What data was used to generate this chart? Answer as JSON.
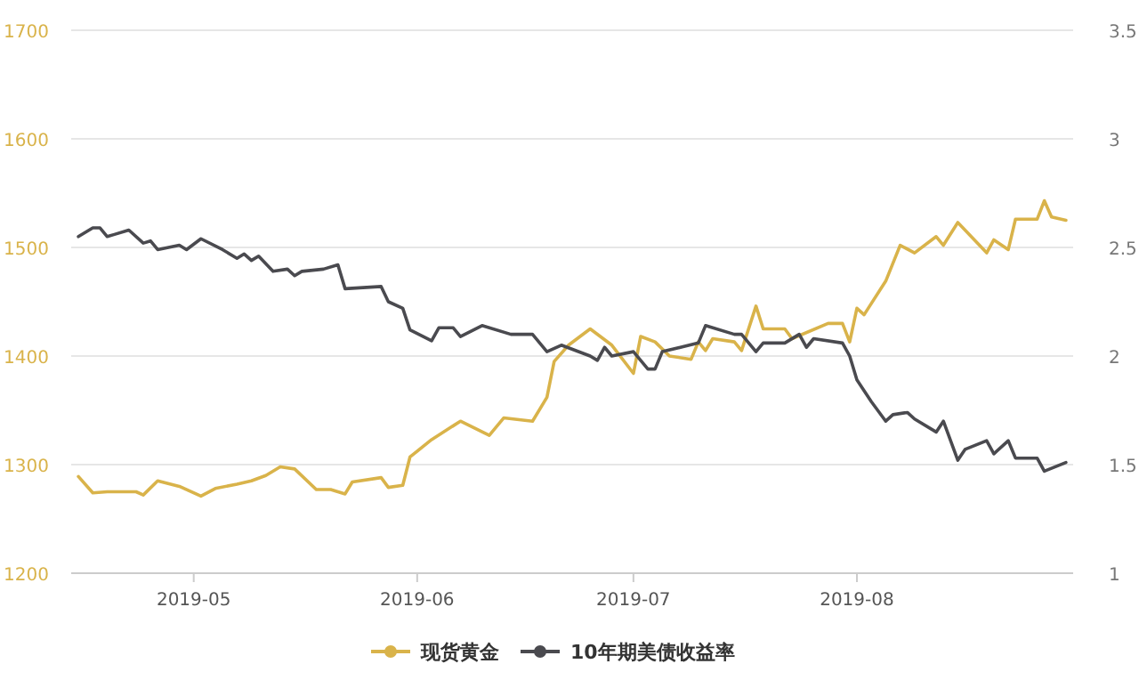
{
  "chart_data": {
    "type": "line",
    "xlim": [
      "2019-04-14",
      "2019-08-31"
    ],
    "xticks": [
      "2019-05",
      "2019-06",
      "2019-07",
      "2019-08"
    ],
    "ylim": [
      1200,
      1700
    ],
    "yticks": [
      1200,
      1300,
      1400,
      1500,
      1600,
      1700
    ],
    "y2lim": [
      1,
      3.5
    ],
    "y2ticks": [
      1,
      1.5,
      2,
      2.5,
      3,
      3.5
    ],
    "grid": "y",
    "legend": "bottom",
    "line_style": "solid",
    "series": [
      {
        "name": "现货黄金",
        "color": "#d9b34a",
        "x": [
          "2019-04-15",
          "2019-04-17",
          "2019-04-19",
          "2019-04-23",
          "2019-04-24",
          "2019-04-26",
          "2019-04-29",
          "2019-05-02",
          "2019-05-04",
          "2019-05-07",
          "2019-05-09",
          "2019-05-11",
          "2019-05-13",
          "2019-05-15",
          "2019-05-18",
          "2019-05-20",
          "2019-05-22",
          "2019-05-23",
          "2019-05-27",
          "2019-05-28",
          "2019-05-30",
          "2019-05-31",
          "2019-06-03",
          "2019-06-07",
          "2019-06-11",
          "2019-06-13",
          "2019-06-17",
          "2019-06-19",
          "2019-06-20",
          "2019-06-22",
          "2019-06-25",
          "2019-06-28",
          "2019-07-01",
          "2019-07-02",
          "2019-07-04",
          "2019-07-06",
          "2019-07-09",
          "2019-07-10",
          "2019-07-11",
          "2019-07-12",
          "2019-07-15",
          "2019-07-16",
          "2019-07-18",
          "2019-07-19",
          "2019-07-22",
          "2019-07-23",
          "2019-07-28",
          "2019-07-30",
          "2019-07-31",
          "2019-08-01",
          "2019-08-02",
          "2019-08-05",
          "2019-08-07",
          "2019-08-09",
          "2019-08-12",
          "2019-08-13",
          "2019-08-15",
          "2019-08-19",
          "2019-08-20",
          "2019-08-22",
          "2019-08-23",
          "2019-08-26",
          "2019-08-27",
          "2019-08-28",
          "2019-08-30"
        ],
        "values": [
          1289,
          1274,
          1275,
          1275,
          1272,
          1285,
          1280,
          1271,
          1278,
          1282,
          1285,
          1290,
          1298,
          1296,
          1277,
          1277,
          1273,
          1284,
          1288,
          1279,
          1281,
          1307,
          1323,
          1340,
          1327,
          1343,
          1340,
          1362,
          1395,
          1410,
          1425,
          1410,
          1384,
          1418,
          1413,
          1400,
          1397,
          1413,
          1405,
          1416,
          1413,
          1405,
          1446,
          1425,
          1425,
          1416,
          1430,
          1430,
          1413,
          1444,
          1438,
          1469,
          1502,
          1495,
          1510,
          1502,
          1523,
          1495,
          1507,
          1498,
          1526,
          1526,
          1543,
          1528,
          1525
        ]
      },
      {
        "name": "10年期美债收益率",
        "color": "#4a4a4f",
        "axis": "y2",
        "x": [
          "2019-04-15",
          "2019-04-17",
          "2019-04-18",
          "2019-04-19",
          "2019-04-20",
          "2019-04-22",
          "2019-04-24",
          "2019-04-25",
          "2019-04-26",
          "2019-04-29",
          "2019-04-30",
          "2019-05-02",
          "2019-05-05",
          "2019-05-07",
          "2019-05-08",
          "2019-05-09",
          "2019-05-10",
          "2019-05-12",
          "2019-05-14",
          "2019-05-15",
          "2019-05-16",
          "2019-05-19",
          "2019-05-21",
          "2019-05-22",
          "2019-05-27",
          "2019-05-28",
          "2019-05-30",
          "2019-05-31",
          "2019-06-03",
          "2019-06-04",
          "2019-06-06",
          "2019-06-07",
          "2019-06-10",
          "2019-06-14",
          "2019-06-17",
          "2019-06-19",
          "2019-06-21",
          "2019-06-25",
          "2019-06-26",
          "2019-06-27",
          "2019-06-28",
          "2019-07-01",
          "2019-07-03",
          "2019-07-04",
          "2019-07-05",
          "2019-07-10",
          "2019-07-11",
          "2019-07-15",
          "2019-07-16",
          "2019-07-18",
          "2019-07-19",
          "2019-07-22",
          "2019-07-24",
          "2019-07-25",
          "2019-07-26",
          "2019-07-30",
          "2019-07-31",
          "2019-08-01",
          "2019-08-03",
          "2019-08-05",
          "2019-08-06",
          "2019-08-08",
          "2019-08-09",
          "2019-08-12",
          "2019-08-13",
          "2019-08-15",
          "2019-08-16",
          "2019-08-19",
          "2019-08-20",
          "2019-08-22",
          "2019-08-23",
          "2019-08-26",
          "2019-08-27",
          "2019-08-30"
        ],
        "values": [
          2.55,
          2.59,
          2.59,
          2.55,
          2.56,
          2.58,
          2.52,
          2.53,
          2.49,
          2.51,
          2.49,
          2.54,
          2.49,
          2.45,
          2.47,
          2.44,
          2.46,
          2.39,
          2.4,
          2.37,
          2.39,
          2.4,
          2.42,
          2.31,
          2.32,
          2.25,
          2.22,
          2.12,
          2.07,
          2.13,
          2.13,
          2.09,
          2.14,
          2.1,
          2.1,
          2.02,
          2.05,
          2.0,
          1.98,
          2.04,
          2.0,
          2.02,
          1.94,
          1.94,
          2.02,
          2.06,
          2.14,
          2.1,
          2.1,
          2.02,
          2.06,
          2.06,
          2.1,
          2.04,
          2.08,
          2.06,
          2.0,
          1.89,
          1.79,
          1.7,
          1.73,
          1.74,
          1.71,
          1.65,
          1.7,
          1.52,
          1.57,
          1.61,
          1.55,
          1.61,
          1.53,
          1.53,
          1.47,
          1.51
        ]
      }
    ]
  }
}
